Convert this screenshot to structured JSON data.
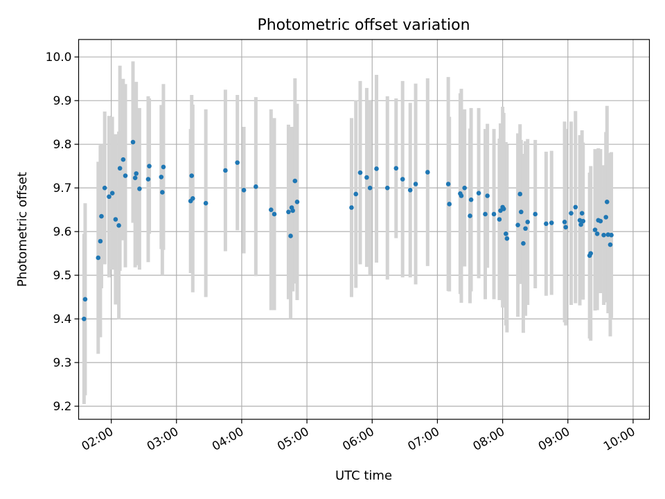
{
  "chart_data": {
    "type": "scatter",
    "title": "Photometric offset variation",
    "xlabel": "UTC time",
    "ylabel": "Photometric offset",
    "x_axis": {
      "kind": "time",
      "range": [
        "01:30",
        "10:15"
      ],
      "ticks": [
        "02:00",
        "03:00",
        "04:00",
        "05:00",
        "06:00",
        "07:00",
        "08:00",
        "09:00",
        "10:00"
      ]
    },
    "y_axis": {
      "range": [
        9.17,
        10.04
      ],
      "ticks": [
        9.2,
        9.3,
        9.4,
        9.5,
        9.6,
        9.7,
        9.8,
        9.9,
        10.0
      ],
      "tick_labels": [
        "9.2",
        "9.3",
        "9.4",
        "9.5",
        "9.6",
        "9.7",
        "9.8",
        "9.9",
        "10.0"
      ]
    },
    "grid": true,
    "colors": {
      "points": "#1f77b4",
      "errorbars": "#d3d3d3",
      "grid": "#b0b0b0"
    },
    "series": [
      {
        "x": [
          "01:35",
          "01:36",
          "01:48",
          "01:50",
          "01:51",
          "01:54",
          "01:58",
          "02:01",
          "02:04",
          "02:07",
          "02:08",
          "02:11",
          "02:13",
          "02:20",
          "02:22",
          "02:23",
          "02:26",
          "02:34",
          "02:35",
          "02:46",
          "02:47",
          "02:48",
          "03:13",
          "03:14",
          "03:15",
          "03:27",
          "03:45",
          "03:56",
          "04:02",
          "04:13",
          "04:27",
          "04:30",
          "04:43",
          "04:45",
          "04:46",
          "04:47",
          "04:49",
          "04:51",
          "05:41",
          "05:45",
          "05:49",
          "05:55",
          "05:58",
          "06:04",
          "06:14",
          "06:22",
          "06:28",
          "06:35",
          "06:40",
          "06:51",
          "07:10",
          "07:11",
          "07:21",
          "07:22",
          "07:25",
          "07:30",
          "07:31",
          "07:38",
          "07:44",
          "07:46",
          "07:52",
          "07:57",
          "07:58",
          "08:00",
          "08:01",
          "08:03",
          "08:04",
          "08:14",
          "08:16",
          "08:17",
          "08:19",
          "08:21",
          "08:23",
          "08:30",
          "08:40",
          "08:45",
          "08:57",
          "08:58",
          "09:03",
          "09:07",
          "09:11",
          "09:12",
          "09:13",
          "09:14",
          "09:20",
          "09:21",
          "09:25",
          "09:27",
          "09:28",
          "09:30",
          "09:33",
          "09:35",
          "09:36",
          "09:37",
          "09:39",
          "09:40"
        ],
        "y": [
          9.4,
          9.445,
          9.54,
          9.578,
          9.635,
          9.7,
          9.68,
          9.688,
          9.628,
          9.614,
          9.745,
          9.765,
          9.728,
          9.805,
          9.723,
          9.733,
          9.698,
          9.72,
          9.75,
          9.725,
          9.69,
          9.748,
          9.67,
          9.728,
          9.676,
          9.665,
          9.74,
          9.758,
          9.695,
          9.703,
          9.65,
          9.64,
          9.645,
          9.59,
          9.655,
          9.648,
          9.716,
          9.668,
          9.655,
          9.686,
          9.735,
          9.724,
          9.7,
          9.744,
          9.7,
          9.745,
          9.72,
          9.695,
          9.709,
          9.736,
          9.709,
          9.663,
          9.687,
          9.682,
          9.7,
          9.636,
          9.673,
          9.688,
          9.64,
          9.682,
          9.64,
          9.628,
          9.648,
          9.656,
          9.652,
          9.595,
          9.584,
          9.615,
          9.686,
          9.645,
          9.573,
          9.607,
          9.622,
          9.64,
          9.618,
          9.62,
          9.622,
          9.61,
          9.642,
          9.656,
          9.626,
          9.616,
          9.642,
          9.624,
          9.545,
          9.55,
          9.604,
          9.595,
          9.626,
          9.624,
          9.592,
          9.633,
          9.668,
          9.593,
          9.57,
          9.592
        ],
        "err": [
          0.195,
          0.22,
          0.22,
          0.22,
          0.165,
          0.175,
          0.185,
          0.175,
          0.195,
          0.215,
          0.235,
          0.185,
          0.21,
          0.185,
          0.205,
          0.21,
          0.185,
          0.19,
          0.155,
          0.165,
          0.19,
          0.19,
          0.165,
          0.185,
          0.215,
          0.215,
          0.185,
          0.155,
          0.145,
          0.205,
          0.23,
          0.22,
          0.2,
          0.19,
          0.185,
          0.185,
          0.235,
          0.225,
          0.205,
          0.215,
          0.21,
          0.205,
          0.2,
          0.215,
          0.21,
          0.16,
          0.225,
          0.2,
          0.23,
          0.215,
          0.245,
          0.2,
          0.23,
          0.245,
          0.18,
          0.2,
          0.21,
          0.195,
          0.195,
          0.165,
          0.195,
          0.185,
          0.2,
          0.23,
          0.22,
          0.21,
          0.215,
          0.21,
          0.16,
          0.165,
          0.205,
          0.2,
          0.19,
          0.17,
          0.165,
          0.165,
          0.23,
          0.225,
          0.21,
          0.22,
          0.195,
          0.165,
          0.19,
          0.18,
          0.19,
          0.2,
          0.185,
          0.175,
          0.165,
          0.165,
          0.16,
          0.195,
          0.22,
          0.18,
          0.21,
          0.19
        ]
      }
    ]
  }
}
